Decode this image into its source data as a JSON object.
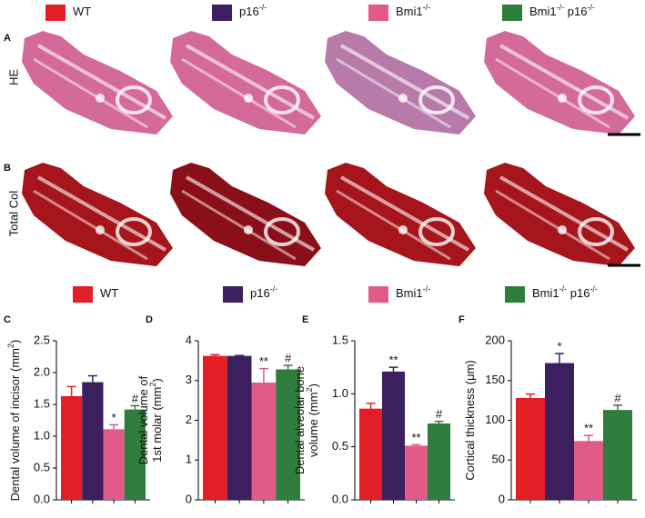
{
  "legend": [
    {
      "color": "#e31e24",
      "parts": [
        "WT"
      ]
    },
    {
      "color": "#3b1f5e",
      "parts": [
        "p16",
        "-/-"
      ]
    },
    {
      "color": "#e05a8a",
      "parts": [
        "Bmi1",
        "-/-"
      ]
    },
    {
      "color": "#2e7d3c",
      "parts": [
        "Bmi1",
        "-/-",
        " p16",
        "-/-"
      ]
    }
  ],
  "panels": {
    "a": "A",
    "b": "B",
    "he": "HE",
    "col": "Total Col"
  },
  "chart_data": [
    {
      "type": "bar",
      "panel": "C",
      "ylabel": [
        [
          "Dental volume of incisor (mm",
          "2",
          ")"
        ]
      ],
      "ylim": [
        0,
        2.5
      ],
      "yticks": [
        {
          "value": 0,
          "label": "0.0"
        },
        0.5,
        {
          "value": 1,
          "label": "1.0"
        },
        1.5,
        {
          "value": 2,
          "label": "2.0"
        },
        2.5
      ],
      "values": [
        1.63,
        1.85,
        1.11,
        1.42
      ],
      "errors": [
        0.15,
        0.1,
        0.07,
        0.06
      ],
      "markers": [
        null,
        null,
        "*",
        "#"
      ]
    },
    {
      "type": "bar",
      "panel": "D",
      "ylabel": [
        [
          "Dental volume of"
        ],
        [
          "1st molar (mm",
          "2",
          ")"
        ]
      ],
      "ylim": [
        0,
        4
      ],
      "yticks": [
        0,
        1,
        2,
        3,
        4
      ],
      "values": [
        3.62,
        3.62,
        2.95,
        3.28
      ],
      "errors": [
        0.03,
        0.01,
        0.35,
        0.1
      ],
      "markers": [
        null,
        null,
        "**",
        "#"
      ]
    },
    {
      "type": "bar",
      "panel": "E",
      "ylabel": [
        [
          "Dental alveolar bone"
        ],
        [
          "volume (mm",
          "2",
          ")"
        ]
      ],
      "ylim": [
        0,
        1.5
      ],
      "yticks": [
        {
          "value": 0,
          "label": "0.0"
        },
        0.5,
        {
          "value": 1,
          "label": "1.0"
        },
        1.5
      ],
      "values": [
        0.86,
        1.21,
        0.51,
        0.72
      ],
      "errors": [
        0.05,
        0.04,
        0.01,
        0.02
      ],
      "markers": [
        null,
        "**",
        "**",
        "#"
      ]
    },
    {
      "type": "bar",
      "panel": "F",
      "ylabel": [
        [
          "Cortical thickness (μm)"
        ]
      ],
      "ylim": [
        0,
        200
      ],
      "yticks": [
        0,
        50,
        100,
        150,
        200
      ],
      "values": [
        128,
        172,
        74,
        113
      ],
      "errors": [
        5,
        12,
        7,
        6
      ],
      "markers": [
        null,
        "*",
        "**",
        "#"
      ]
    }
  ]
}
